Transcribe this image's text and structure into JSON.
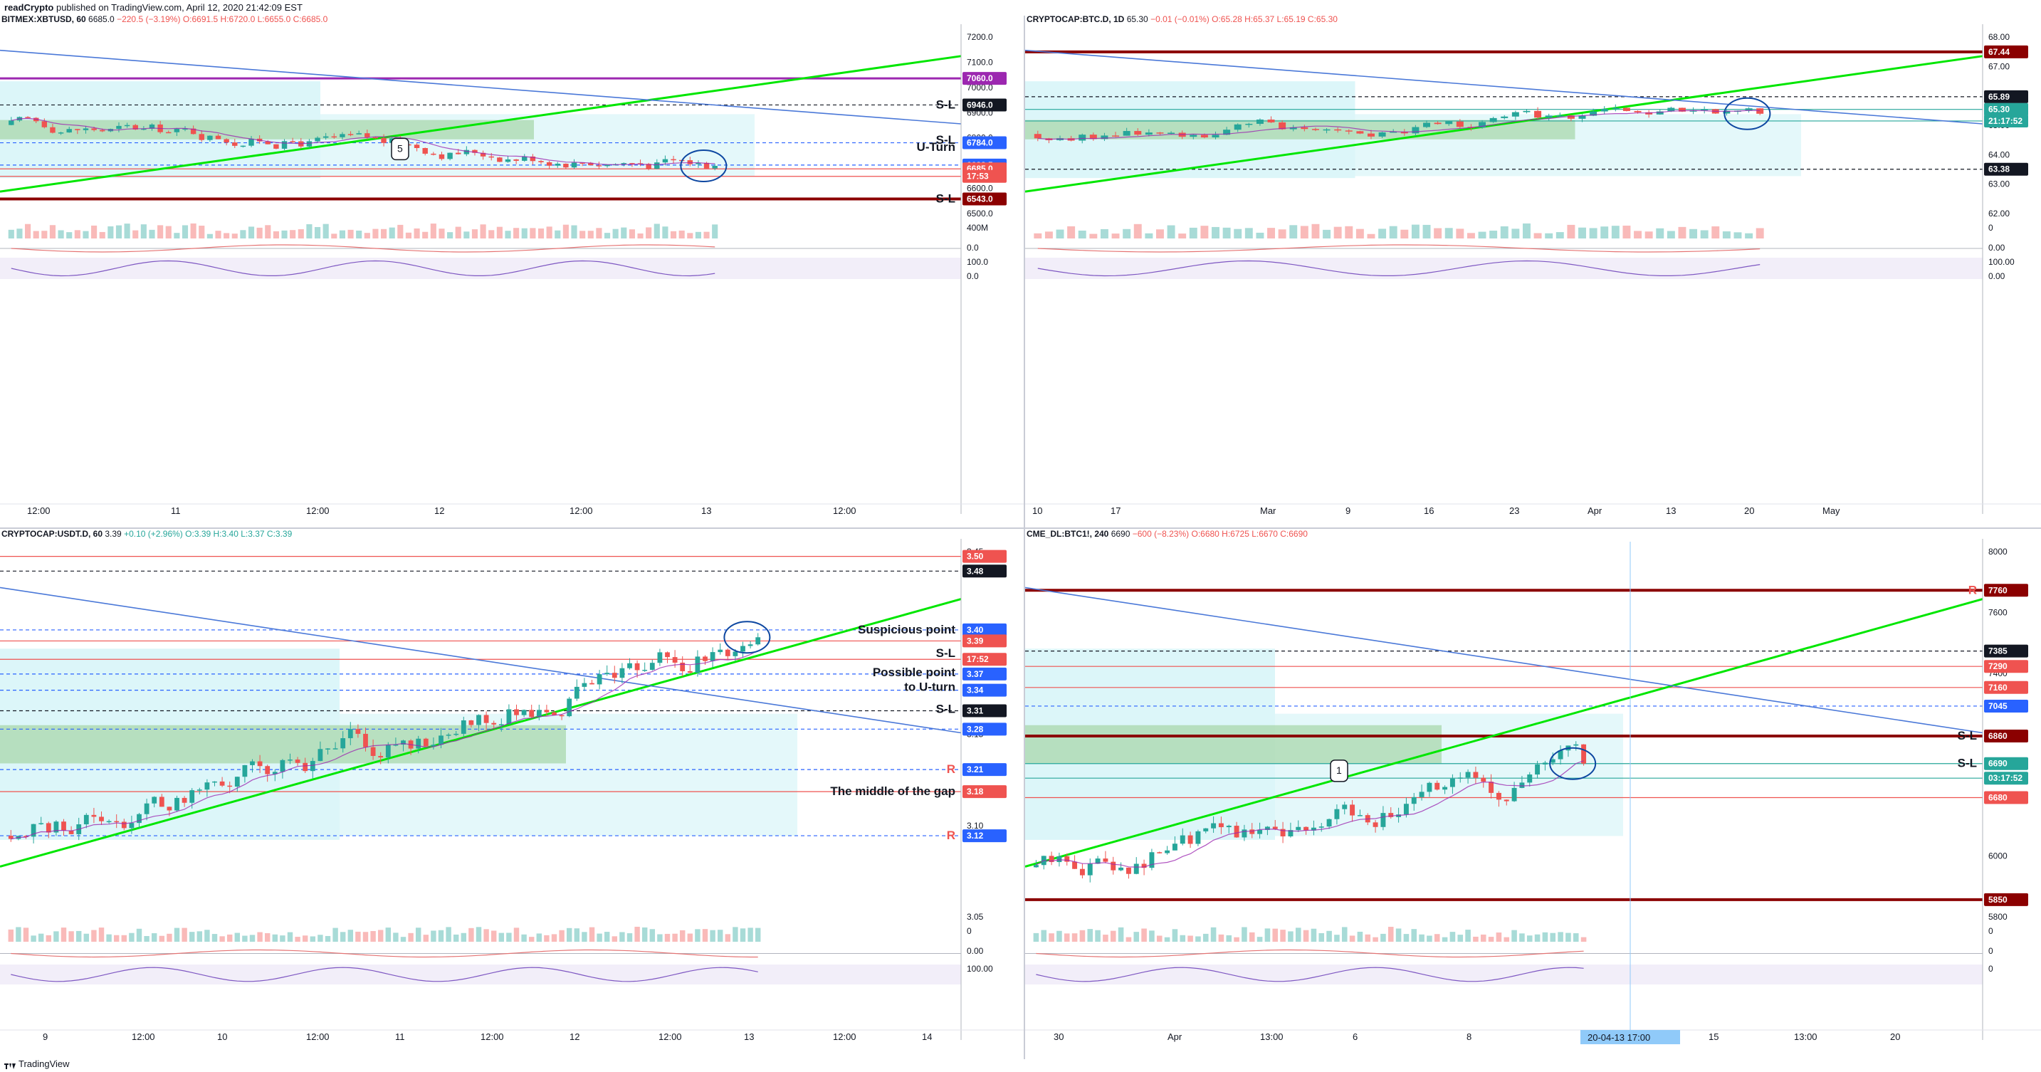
{
  "header": {
    "author": "readCrypto",
    "published": " published on TradingView.com, April 12, 2020 21:42:09 EST"
  },
  "footer": {
    "brand": "TradingView",
    "logo_icon": "tradingview-logo-icon"
  },
  "colors": {
    "up": "#26a69a",
    "down": "#ef5350",
    "cloud_bull": "#a5d6a7",
    "cloud_bear": "#f8bbd0",
    "cloud_blue": "#b2ebf2",
    "trend_green": "#00e600",
    "trend_blue": "#4a78d8",
    "purple": "#9c27b0",
    "dark_red": "#8b0000",
    "orange": "#ffb300"
  },
  "panels": [
    {
      "id": "xbtusd",
      "symbol": "BITMEX:XBTUSD, 60",
      "price": "6685.0",
      "change": "−220.5 (−3.19%)",
      "ohlc": "O:6691.5 H:6720.0 L:6655.0 C:6685.0",
      "x_ticks": [
        "12:00",
        "11",
        "12:00",
        "12",
        "12:00",
        "13",
        "12:00"
      ],
      "y_ticks": [
        "7200.0",
        "7100.0",
        "7000.0",
        "6900.0",
        "6800.0",
        "6700.0",
        "6600.0",
        "6500.0"
      ],
      "volume_tick": "400M",
      "osc1_tick": "0.0",
      "osc2_ticks": [
        "100.0",
        "0.0"
      ],
      "price_labels": [
        {
          "text": "7060.0",
          "bg": "#9c27b0",
          "price": 7060
        },
        {
          "text": "6946.0",
          "bg": "#131722",
          "price": 6946
        },
        {
          "text": "6784.0",
          "bg": "#2962ff",
          "price": 6784
        },
        {
          "text": "6688.5",
          "bg": "#2962ff",
          "price": 6688.5
        },
        {
          "text": "6685.0",
          "bg": "#ef5350",
          "price": 6672
        },
        {
          "text": "17:53",
          "bg": "#ef5350",
          "price": 6640
        },
        {
          "text": "6543.0",
          "bg": "#8b0000",
          "price": 6543
        }
      ],
      "annotations": [
        {
          "text": "S-L",
          "price": 6946
        },
        {
          "text": "S-L",
          "price": 6795
        },
        {
          "text": "U-Turn",
          "price": 6765
        },
        {
          "text": "S-L",
          "price": 6543
        },
        {
          "text": "5",
          "price": 6760
        }
      ]
    },
    {
      "id": "btcd",
      "symbol": "CRYPTOCAP:BTC.D, 1D",
      "price": "65.30",
      "change": "−0.01 (−0.01%)",
      "ohlc": "O:65.28 H:65.37 L:65.19 C:65.30",
      "x_ticks": [
        "10",
        "17",
        "Mar",
        "9",
        "16",
        "23",
        "Apr",
        "13",
        "20",
        "May"
      ],
      "y_ticks": [
        "68.00",
        "67.00",
        "66.00",
        "65.00",
        "64.00",
        "63.00",
        "62.00"
      ],
      "volume_tick": "0",
      "osc1_tick": "0.00",
      "osc2_ticks": [
        "100.00",
        "0.00"
      ],
      "price_labels": [
        {
          "text": "67.44",
          "bg": "#8b0000",
          "price": 67.44
        },
        {
          "text": "65.89",
          "bg": "#131722",
          "price": 65.89
        },
        {
          "text": "65.30",
          "bg": "#26a69a",
          "price": 65.45
        },
        {
          "text": "21:17:52",
          "bg": "#26a69a",
          "price": 65.05
        },
        {
          "text": "63.38",
          "bg": "#131722",
          "price": 63.38
        }
      ],
      "annotations": []
    },
    {
      "id": "usdtd",
      "symbol": "CRYPTOCAP:USDT.D, 60",
      "price": "3.39",
      "change": "+0.10 (+2.96%)",
      "ohlc": "O:3.39 H:3.40 L:3.37 C:3.39",
      "x_ticks": [
        "9",
        "12:00",
        "10",
        "12:00",
        "11",
        "12:00",
        "12",
        "12:00",
        "13",
        "12:00",
        "14"
      ],
      "y_ticks": [
        "3.45",
        "3.25",
        "3.15",
        "3.10",
        "3.05"
      ],
      "volume_tick": "0",
      "osc1_tick": "0.00",
      "osc2_ticks": [
        "100.00"
      ],
      "price_labels": [
        {
          "text": "3.50",
          "bg": "#ef5350",
          "price": 3.5
        },
        {
          "text": "3.48",
          "bg": "#131722",
          "price": 3.48
        },
        {
          "text": "3.40",
          "bg": "#2962ff",
          "price": 3.4
        },
        {
          "text": "3.39",
          "bg": "#ef5350",
          "price": 3.385
        },
        {
          "text": "17:52",
          "bg": "#ef5350",
          "price": 3.36
        },
        {
          "text": "3.37",
          "bg": "#2962ff",
          "price": 3.34
        },
        {
          "text": "3.34",
          "bg": "#2962ff",
          "price": 3.318
        },
        {
          "text": "3.31",
          "bg": "#131722",
          "price": 3.29
        },
        {
          "text": "3.28",
          "bg": "#2962ff",
          "price": 3.265
        },
        {
          "text": "3.21",
          "bg": "#2962ff",
          "price": 3.21
        },
        {
          "text": "3.18",
          "bg": "#ef5350",
          "price": 3.18
        },
        {
          "text": "3.12",
          "bg": "#2962ff",
          "price": 3.12
        }
      ],
      "annotations": [
        {
          "text": "Suspicious point",
          "price": 3.4
        },
        {
          "text": "S-L",
          "price": 3.368
        },
        {
          "text": "Possible point",
          "price": 3.342
        },
        {
          "text": "to U-turn",
          "price": 3.322
        },
        {
          "text": "S-L",
          "price": 3.292
        },
        {
          "text": "R",
          "price": 3.21
        },
        {
          "text": "The middle of the gap",
          "price": 3.18
        },
        {
          "text": "R",
          "price": 3.12
        }
      ]
    },
    {
      "id": "cmebtc",
      "symbol": "CME_DL:BTC1!, 240",
      "price": "6690",
      "change": "−600 (−8.23%)",
      "ohlc": "O:6680 H:6725 L:6670 C:6690",
      "x_ticks": [
        "30",
        "Apr",
        "13:00",
        "6",
        "8",
        "15",
        "13:00",
        "20"
      ],
      "y_ticks": [
        "8000",
        "7600",
        "7400",
        "6400",
        "6200",
        "6000",
        "5800"
      ],
      "volume_tick": "0",
      "osc1_tick": "0",
      "osc2_ticks": [
        "0"
      ],
      "date_badge": "20-04-13   17:00",
      "price_labels": [
        {
          "text": "7760",
          "bg": "#8b0000",
          "price": 7760
        },
        {
          "text": "7385",
          "bg": "#131722",
          "price": 7385
        },
        {
          "text": "7290",
          "bg": "#ef5350",
          "price": 7290
        },
        {
          "text": "7160",
          "bg": "#ef5350",
          "price": 7160
        },
        {
          "text": "7045",
          "bg": "#2962ff",
          "price": 7045
        },
        {
          "text": "6860",
          "bg": "#8b0000",
          "price": 6860
        },
        {
          "text": "6690",
          "bg": "#26a69a",
          "price": 6690
        },
        {
          "text": "03:17:52",
          "bg": "#26a69a",
          "price": 6600
        },
        {
          "text": "6680",
          "bg": "#ef5350",
          "price": 6480
        },
        {
          "text": "5850",
          "bg": "#8b0000",
          "price": 5850
        }
      ],
      "annotations": [
        {
          "text": "R",
          "price": 7760
        },
        {
          "text": "S-L",
          "price": 6860
        },
        {
          "text": "S-L",
          "price": 6690
        },
        {
          "text": "1",
          "price": 6650
        }
      ]
    }
  ]
}
